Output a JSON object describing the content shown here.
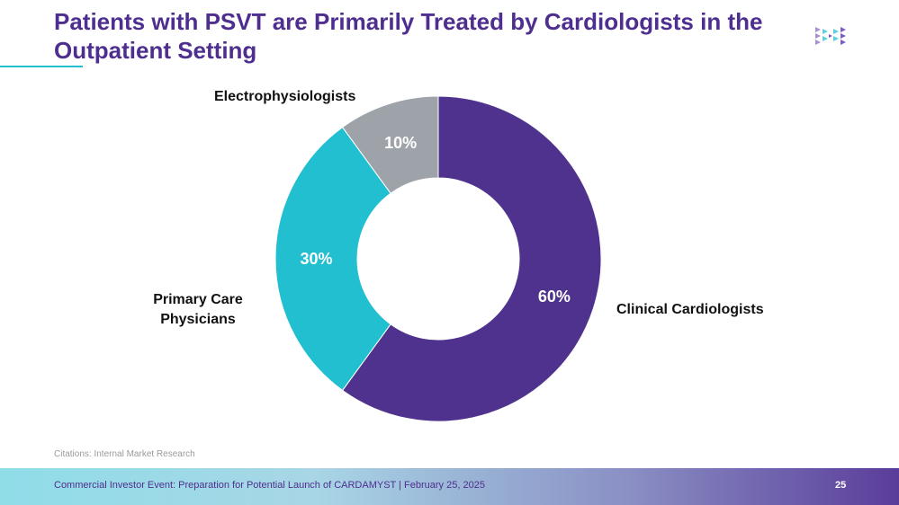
{
  "slide": {
    "title": "Patients with PSVT are Primarily Treated by Cardiologists in the Outpatient Setting",
    "citation": "Citations: Internal Market Research",
    "footer_text": "Commercial Investor Event: Preparation for Potential Launch of CARDAMYST | February 25, 2025",
    "page_number": "25",
    "logo_icon": "company-logo-icon"
  },
  "chart_data": {
    "type": "pie",
    "style": "donut",
    "categories": [
      "Clinical Cardiologists",
      "Primary Care Physicians",
      "Electrophysiologists"
    ],
    "values": [
      60,
      30,
      10
    ],
    "value_labels": [
      "60%",
      "30%",
      "10%"
    ],
    "colors": [
      "#4e328d",
      "#21bfd0",
      "#9ea3a9"
    ],
    "category_labels": {
      "clinical": "Clinical Cardiologists",
      "primary_line1": "Primary Care",
      "primary_line2": "Physicians",
      "electro": "Electrophysiologists"
    }
  }
}
